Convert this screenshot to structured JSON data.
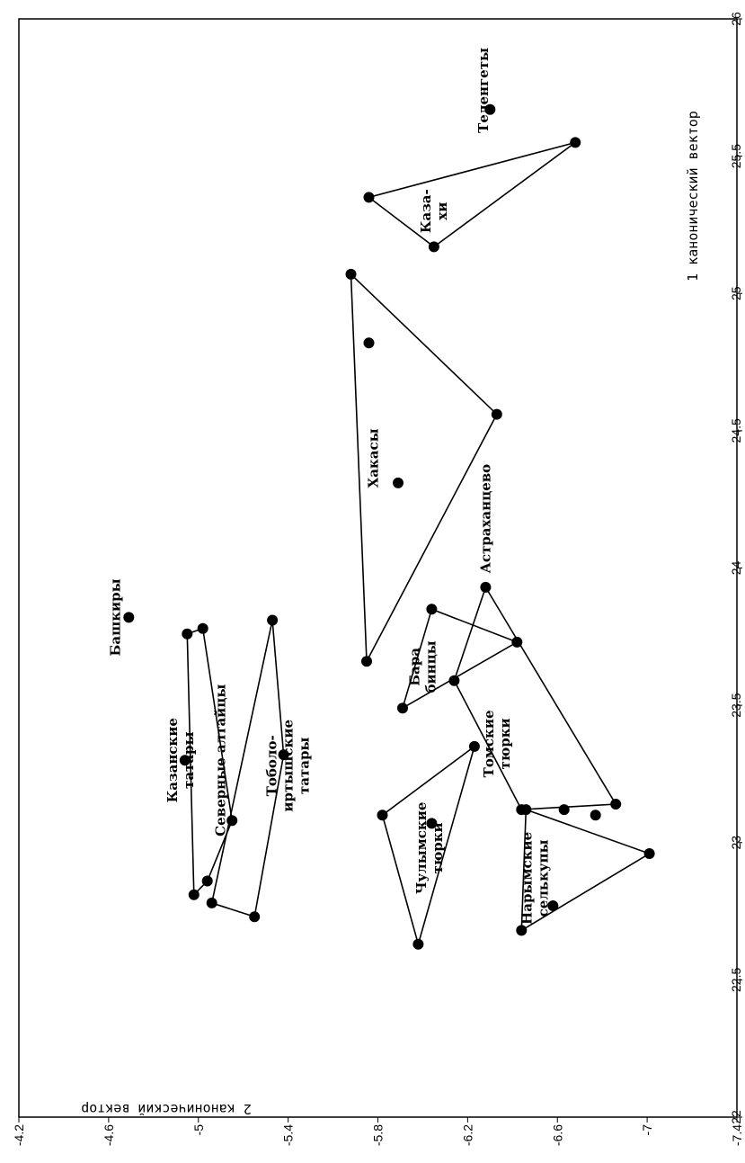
{
  "chart_data": {
    "type": "scatter",
    "title": "",
    "xlabel": "1 канонический вектор",
    "ylabel": "2 канонический вектор",
    "xlim": [
      22,
      26
    ],
    "ylim": [
      -7.4,
      -4.2
    ],
    "xticks": [
      "22",
      "22.5",
      "23",
      "23.5",
      "24",
      "24.5",
      "25",
      "25.5",
      "26"
    ],
    "yticks": [
      "-4.2",
      "-4.6",
      "-5",
      "-5.4",
      "-5.8",
      "-6.2",
      "-6.6",
      "-7",
      "-7.4"
    ],
    "grid": false,
    "points": [
      {
        "x": 25.67,
        "y": -6.3
      },
      {
        "x": 25.55,
        "y": -6.68
      },
      {
        "x": 25.35,
        "y": -5.76
      },
      {
        "x": 25.17,
        "y": -6.05
      },
      {
        "x": 25.07,
        "y": -5.68
      },
      {
        "x": 24.82,
        "y": -5.76
      },
      {
        "x": 24.56,
        "y": -6.33
      },
      {
        "x": 24.31,
        "y": -5.89
      },
      {
        "x": 23.93,
        "y": -6.28
      },
      {
        "x": 23.85,
        "y": -6.04
      },
      {
        "x": 23.82,
        "y": -4.69
      },
      {
        "x": 23.81,
        "y": -5.33
      },
      {
        "x": 23.78,
        "y": -5.02
      },
      {
        "x": 23.76,
        "y": -4.95
      },
      {
        "x": 23.73,
        "y": -6.42
      },
      {
        "x": 23.66,
        "y": -5.75
      },
      {
        "x": 23.59,
        "y": -6.14
      },
      {
        "x": 23.49,
        "y": -5.91
      },
      {
        "x": 23.35,
        "y": -6.23
      },
      {
        "x": 23.32,
        "y": -5.38
      },
      {
        "x": 23.3,
        "y": -4.94
      },
      {
        "x": 23.14,
        "y": -6.86
      },
      {
        "x": 23.12,
        "y": -6.63
      },
      {
        "x": 23.12,
        "y": -6.44
      },
      {
        "x": 23.12,
        "y": -6.46
      },
      {
        "x": 23.1,
        "y": -6.77
      },
      {
        "x": 23.1,
        "y": -5.82
      },
      {
        "x": 23.08,
        "y": -5.15
      },
      {
        "x": 23.07,
        "y": -6.04
      },
      {
        "x": 22.96,
        "y": -7.01
      },
      {
        "x": 22.86,
        "y": -5.04
      },
      {
        "x": 22.81,
        "y": -4.98
      },
      {
        "x": 22.78,
        "y": -5.06
      },
      {
        "x": 22.77,
        "y": -6.58
      },
      {
        "x": 22.73,
        "y": -5.25
      },
      {
        "x": 22.68,
        "y": -6.44
      },
      {
        "x": 22.63,
        "y": -5.98
      }
    ],
    "polygons": [
      [
        {
          "x": 25.55,
          "y": -6.68
        },
        {
          "x": 25.35,
          "y": -5.76
        },
        {
          "x": 25.17,
          "y": -6.05
        }
      ],
      [
        {
          "x": 25.07,
          "y": -5.68
        },
        {
          "x": 24.56,
          "y": -6.33
        },
        {
          "x": 23.66,
          "y": -5.75
        }
      ],
      [
        {
          "x": 23.85,
          "y": -6.04
        },
        {
          "x": 23.73,
          "y": -6.42
        },
        {
          "x": 23.49,
          "y": -5.91
        }
      ],
      [
        {
          "x": 23.93,
          "y": -6.28
        },
        {
          "x": 23.14,
          "y": -6.86
        },
        {
          "x": 23.12,
          "y": -6.44
        },
        {
          "x": 23.59,
          "y": -6.14
        }
      ],
      [
        {
          "x": 23.35,
          "y": -6.23
        },
        {
          "x": 22.63,
          "y": -5.98
        },
        {
          "x": 23.1,
          "y": -5.82
        }
      ],
      [
        {
          "x": 23.12,
          "y": -6.46
        },
        {
          "x": 22.96,
          "y": -7.01
        },
        {
          "x": 22.68,
          "y": -6.44
        }
      ],
      [
        {
          "x": 23.76,
          "y": -4.95
        },
        {
          "x": 23.78,
          "y": -5.02
        },
        {
          "x": 23.08,
          "y": -5.15
        },
        {
          "x": 22.86,
          "y": -5.04
        },
        {
          "x": 22.81,
          "y": -4.98
        }
      ],
      [
        {
          "x": 23.81,
          "y": -5.33
        },
        {
          "x": 23.32,
          "y": -5.38
        },
        {
          "x": 22.73,
          "y": -5.25
        },
        {
          "x": 22.78,
          "y": -5.06
        }
      ]
    ],
    "labels": [
      {
        "lines": [
          "Теленгеты"
        ],
        "x": 25.74,
        "y": -6.27
      },
      {
        "lines": [
          "Каза-",
          "хи"
        ],
        "x": 25.3,
        "y": -6.05
      },
      {
        "lines": [
          "Хакасы"
        ],
        "x": 24.4,
        "y": -5.78
      },
      {
        "lines": [
          "Астраханцево"
        ],
        "x": 24.18,
        "y": -6.28
      },
      {
        "lines": [
          "Башкиры"
        ],
        "x": 23.82,
        "y": -4.63
      },
      {
        "lines": [
          "Бара",
          "бинцы"
        ],
        "x": 23.64,
        "y": -6.0
      },
      {
        "lines": [
          "Казанские",
          "татары"
        ],
        "x": 23.3,
        "y": -4.92
      },
      {
        "lines": [
          "Северные алтайцы"
        ],
        "x": 23.3,
        "y": -5.1
      },
      {
        "lines": [
          "Тоболо-",
          "иртышские",
          "татары"
        ],
        "x": 23.28,
        "y": -5.4
      },
      {
        "lines": [
          "Томские",
          "тюрки"
        ],
        "x": 23.36,
        "y": -6.33
      },
      {
        "lines": [
          "Чулымские",
          "тюрки"
        ],
        "x": 22.98,
        "y": -6.03
      },
      {
        "lines": [
          "Нарымские",
          "селькупы"
        ],
        "x": 22.87,
        "y": -6.5
      }
    ]
  }
}
